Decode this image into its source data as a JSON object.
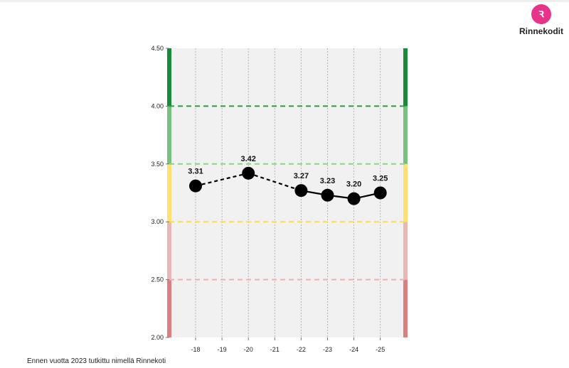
{
  "brand": {
    "name": "Rinnekodit",
    "icon": "rinnekodit-logo-icon",
    "color": "#e8338a"
  },
  "footnote": "Ennen vuotta 2023 tutkittu nimellä Rinnekoti",
  "chart_data": {
    "type": "line",
    "title": "",
    "xlabel": "",
    "ylabel": "",
    "ylim": [
      2.0,
      4.5
    ],
    "yticks": [
      "2.00",
      "2.50",
      "3.00",
      "3.50",
      "4.00",
      "4.50"
    ],
    "categories": [
      "-18",
      "-19",
      "-20",
      "-21",
      "-22",
      "-23",
      "-24",
      "-25"
    ],
    "points": [
      {
        "x": "-18",
        "y": 3.31,
        "label": "3.31"
      },
      {
        "x": "-20",
        "y": 3.42,
        "label": "3.42"
      },
      {
        "x": "-22",
        "y": 3.27,
        "label": "3.27"
      },
      {
        "x": "-23",
        "y": 3.23,
        "label": "3.23"
      },
      {
        "x": "-24",
        "y": 3.2,
        "label": "3.20"
      },
      {
        "x": "-25",
        "y": 3.25,
        "label": "3.25"
      }
    ],
    "segments": [
      {
        "from": "-18",
        "to": "-20",
        "style": "dashed"
      },
      {
        "from": "-20",
        "to": "-22",
        "style": "dashed"
      },
      {
        "from": "-22",
        "to": "-23",
        "style": "solid"
      },
      {
        "from": "-23",
        "to": "-24",
        "style": "solid"
      },
      {
        "from": "-24",
        "to": "-25",
        "style": "solid"
      }
    ],
    "bands": [
      {
        "from": 2.0,
        "to": 2.5,
        "color": "#d88080"
      },
      {
        "from": 2.5,
        "to": 3.0,
        "color": "#e8b8b8"
      },
      {
        "from": 3.0,
        "to": 3.5,
        "color": "#ffe070"
      },
      {
        "from": 3.5,
        "to": 4.0,
        "color": "#78c080"
      },
      {
        "from": 4.0,
        "to": 4.5,
        "color": "#1a8a3a"
      }
    ],
    "thresholds": [
      {
        "y": 2.5,
        "color": "#f0b0b0"
      },
      {
        "y": 3.0,
        "color": "#f5e050"
      },
      {
        "y": 3.5,
        "color": "#8fd08f"
      },
      {
        "y": 4.0,
        "color": "#2e9a4a"
      }
    ],
    "grid": true
  }
}
